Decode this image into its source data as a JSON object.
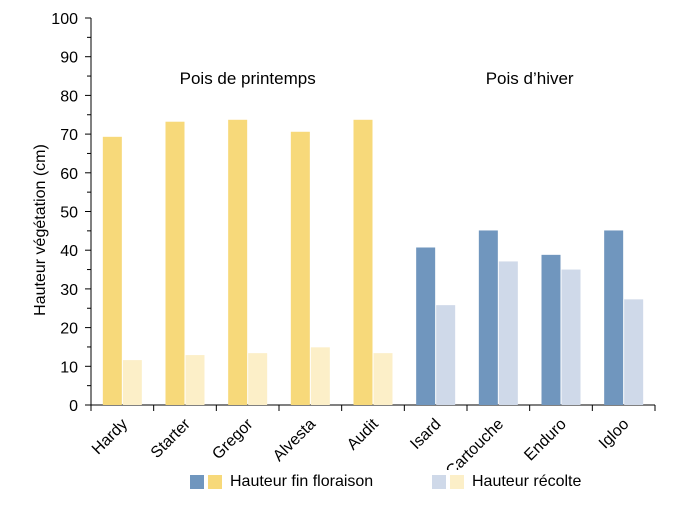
{
  "chart_data": {
    "type": "bar",
    "ylabel": "Hauteur végétation (cm)",
    "xlabel": "",
    "ylim": [
      0,
      100
    ],
    "yticks": [
      0,
      10,
      20,
      30,
      40,
      50,
      60,
      70,
      80,
      90,
      100
    ],
    "categories": [
      "Hardy",
      "Starter",
      "Gregor",
      "Alvesta",
      "Audit",
      "Isard",
      "Cartouche",
      "Enduro",
      "Igloo"
    ],
    "group_by_category": [
      "spring",
      "spring",
      "spring",
      "spring",
      "spring",
      "winter",
      "winter",
      "winter",
      "winter"
    ],
    "series": [
      {
        "name": "Hauteur fin floraison",
        "values": [
          69.3,
          73.2,
          73.7,
          70.6,
          73.7,
          40.7,
          45.1,
          38.8,
          45.1
        ]
      },
      {
        "name": "Hauteur récolte",
        "values": [
          11.6,
          12.9,
          13.4,
          14.9,
          13.4,
          25.8,
          37.1,
          35.0,
          27.3
        ]
      }
    ],
    "colors": {
      "spring_flowering": "#F7D97A",
      "spring_harvest": "#FCEFC8",
      "winter_flowering": "#7096BE",
      "winter_harvest": "#CFD9E9"
    },
    "annotations": [
      {
        "text": "Pois de printemps",
        "group": "spring"
      },
      {
        "text": "Pois d’hiver",
        "group": "winter"
      }
    ],
    "grid": false,
    "legend_position": "bottom"
  }
}
